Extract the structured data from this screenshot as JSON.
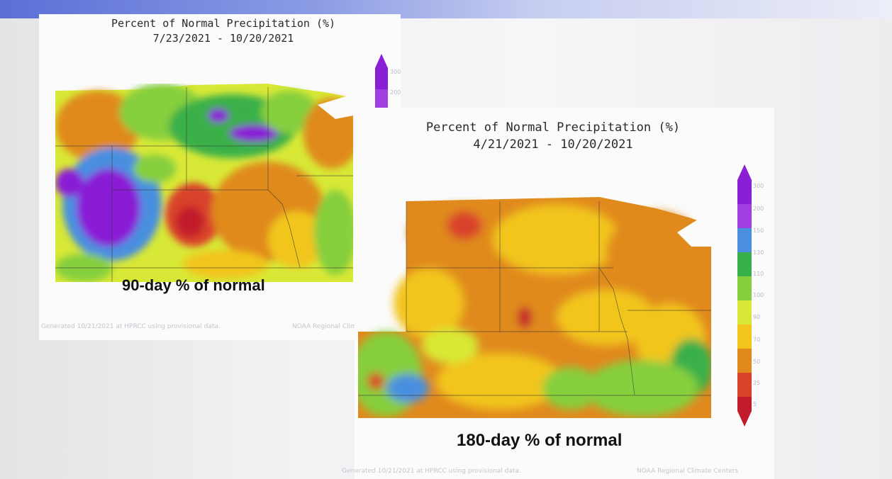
{
  "panels": [
    {
      "title_line1": "Percent of Normal Precipitation (%)",
      "title_line2": "7/23/2021 - 10/20/2021",
      "caption": "90-day % of normal",
      "credit_left": "Generated 10/21/2021 at HPRCC using provisional data.",
      "credit_right": "NOAA Regional Climate Centers"
    },
    {
      "title_line1": "Percent of Normal Precipitation (%)",
      "title_line2": "4/21/2021 - 10/20/2021",
      "caption": "180-day % of normal",
      "credit_left": "Generated 10/21/2021 at HPRCC using provisional data.",
      "credit_right": "NOAA Regional Climate Centers"
    }
  ],
  "legend": {
    "ticks": [
      "300",
      "200",
      "150",
      "130",
      "110",
      "100",
      "90",
      "70",
      "50",
      "25",
      "5"
    ],
    "colors": [
      "#8a1fd6",
      "#a040e0",
      "#4a8fe0",
      "#3ab04a",
      "#86cf3e",
      "#d8e836",
      "#f2c51c",
      "#e08a1e",
      "#d9432a",
      "#c21c2c"
    ]
  }
}
